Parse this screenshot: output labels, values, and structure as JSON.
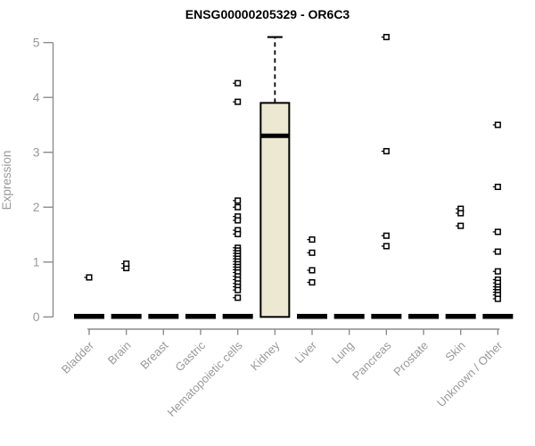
{
  "chart_data": {
    "type": "boxplot",
    "title": "ENSG00000205329 - OR6C3",
    "xlabel": "",
    "ylabel": "Expression",
    "ylim": [
      0,
      5
    ],
    "yticks": [
      0,
      1,
      2,
      3,
      4,
      5
    ],
    "grid": false,
    "legend": "none",
    "categories": [
      "Bladder",
      "Brain",
      "Breast",
      "Gastric",
      "Hematopoietic cells",
      "Kidney",
      "Liver",
      "Lung",
      "Pancreas",
      "Prostate",
      "Skin",
      "Unknown / Other"
    ],
    "boxes": [
      {
        "category": "Bladder",
        "q1": 0,
        "median": 0,
        "q3": 0,
        "whisker_low": 0,
        "whisker_high": 0,
        "outliers": [
          0.72
        ]
      },
      {
        "category": "Brain",
        "q1": 0,
        "median": 0,
        "q3": 0,
        "whisker_low": 0,
        "whisker_high": 0,
        "outliers": [
          0.89,
          0.97
        ]
      },
      {
        "category": "Breast",
        "q1": 0,
        "median": 0,
        "q3": 0,
        "whisker_low": 0,
        "whisker_high": 0,
        "outliers": []
      },
      {
        "category": "Gastric",
        "q1": 0,
        "median": 0,
        "q3": 0,
        "whisker_low": 0,
        "whisker_high": 0,
        "outliers": []
      },
      {
        "category": "Hematopoietic cells",
        "q1": 0,
        "median": 0,
        "q3": 0,
        "whisker_low": 0,
        "whisker_high": 0,
        "outliers": [
          4.26,
          3.92,
          2.12,
          2.0,
          1.83,
          1.76,
          1.58,
          1.51,
          1.26,
          1.21,
          1.16,
          1.11,
          1.06,
          1.01,
          0.96,
          0.91,
          0.86,
          0.81,
          0.74,
          0.68,
          0.61,
          0.55,
          0.49,
          0.35
        ]
      },
      {
        "category": "Kidney",
        "q1": 0,
        "median": 3.3,
        "q3": 3.9,
        "whisker_low": 0,
        "whisker_high": 5.1,
        "outliers": []
      },
      {
        "category": "Liver",
        "q1": 0,
        "median": 0,
        "q3": 0,
        "whisker_low": 0,
        "whisker_high": 0,
        "outliers": [
          1.41,
          1.17,
          0.85,
          0.63
        ]
      },
      {
        "category": "Lung",
        "q1": 0,
        "median": 0,
        "q3": 0,
        "whisker_low": 0,
        "whisker_high": 0,
        "outliers": []
      },
      {
        "category": "Pancreas",
        "q1": 0,
        "median": 0,
        "q3": 0,
        "whisker_low": 0,
        "whisker_high": 0,
        "outliers": [
          5.1,
          3.02,
          1.48,
          1.29
        ]
      },
      {
        "category": "Prostate",
        "q1": 0,
        "median": 0,
        "q3": 0,
        "whisker_low": 0,
        "whisker_high": 0,
        "outliers": []
      },
      {
        "category": "Skin",
        "q1": 0,
        "median": 0,
        "q3": 0,
        "whisker_low": 0,
        "whisker_high": 0,
        "outliers": [
          1.97,
          1.89,
          1.66
        ]
      },
      {
        "category": "Unknown / Other",
        "q1": 0,
        "median": 0,
        "q3": 0,
        "whisker_low": 0,
        "whisker_high": 0,
        "outliers": [
          3.5,
          2.37,
          1.55,
          1.19,
          0.83,
          0.68,
          0.62,
          0.55,
          0.5,
          0.45,
          0.4,
          0.33
        ]
      }
    ],
    "colors": {
      "background": "#ffffff",
      "box_fill": "#ede8d1",
      "box_border": "#000000",
      "median": "#000000",
      "whisker": "#000000",
      "outlier_border": "#000000",
      "outlier_fill": "#ffffff",
      "axis": "#8c8c8c",
      "tick_label": "#999999",
      "title": "#000000"
    }
  }
}
